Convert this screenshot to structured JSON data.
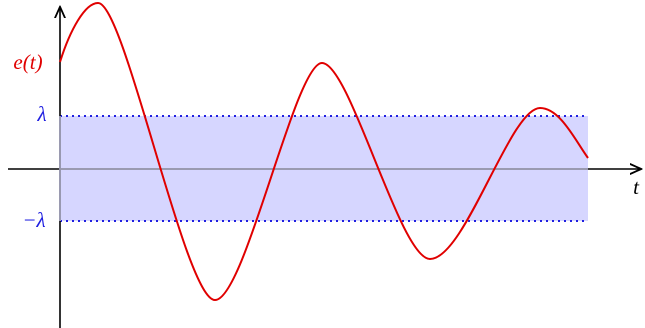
{
  "labels": {
    "function": "e(t)",
    "upper": "λ",
    "lower": "−λ",
    "axis": "t"
  }
}
